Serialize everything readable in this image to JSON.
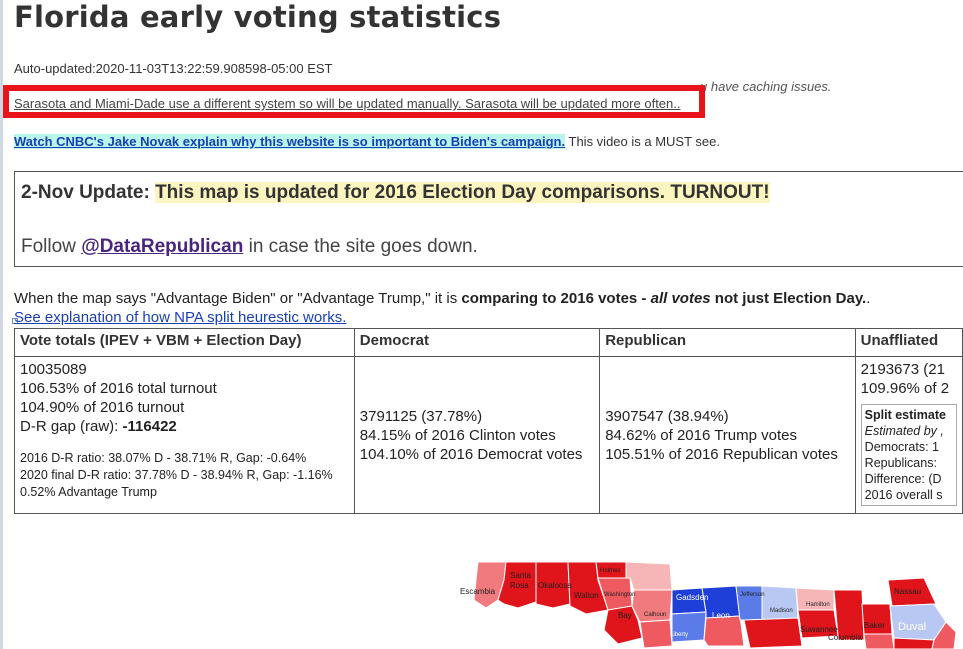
{
  "title": "Florida early voting statistics",
  "auto_updated": "Auto-updated:2020-11-03T13:22:59.908598-05:00 EST",
  "partially_hidden_line": {
    "visible_end": "u have caching issues."
  },
  "manual_note": "Sarasota and Miami-Dade use a different system so will be updated manually. Sarasota will be updated more often..",
  "cnbc": {
    "link": "Watch CNBC's Jake Novak explain why this website is so important to Biden's campaign.",
    "suffix": "This video is a MUST see."
  },
  "update_box": {
    "prefix": "2-Nov Update:",
    "highlight": "This map is updated for 2016 Election Day comparisons. TURNOUT!",
    "follow_pre": "Follow",
    "follow_link": "@DataRepublican",
    "follow_post": "in case the site goes down."
  },
  "advantage": {
    "pre": "When the map says \"Advantage Biden\" or \"Advantage Trump,\" it is ",
    "bold1": "comparing to 2016 votes - ",
    "italic": "all votes",
    "bold2": " not just Election Day.",
    "post": "."
  },
  "npa_link": "See explanation of how NPA split heurestic works.",
  "table": {
    "headers": [
      "Vote totals (IPEV + VBM + Election Day)",
      "Democrat",
      "Republican",
      "Unaffliated"
    ],
    "totals": {
      "total": "10035089",
      "pct_2016_total": "106.53% of 2016 total turnout",
      "pct_2016": "104.90% of 2016 turnout",
      "gap_label": "D-R gap (raw): ",
      "gap_value": "-116422",
      "ratio_2016": "2016 D-R ratio: 38.07% D - 38.71% R, Gap: -0.64%",
      "ratio_2020": "2020 final D-R ratio: 37.78% D - 38.94% R, Gap: -1.16%",
      "advantage": "0.52% Advantage Trump"
    },
    "democrat": [
      "3791125 (37.78%)",
      "84.15% of 2016 Clinton votes",
      "104.10% of 2016 Democrat votes"
    ],
    "republican": [
      "3907547 (38.94%)",
      "84.62% of 2016 Trump votes",
      "105.51% of 2016 Republican votes"
    ],
    "unaffiliated": {
      "line1": "2193673 (21",
      "line2": "109.96% of 2",
      "split_title": "Split estimate",
      "split_estimated": "Estimated by ,",
      "split_dem": "Democrats: 1",
      "split_rep": "Republicans:",
      "split_diff": "Difference: (D",
      "split_overall": "2016 overall s"
    }
  },
  "map": {
    "counties": [
      "Escambia",
      "Santa Rosa",
      "Okaloosa",
      "Walton",
      "Holmes",
      "Washington",
      "Bay",
      "Calhoun",
      "Gadsden",
      "Jefferson",
      "Leon",
      "Liberty",
      "Madison",
      "Hamilton",
      "Suwannee",
      "Columbia",
      "Baker",
      "Nassau",
      "Duval"
    ],
    "colors": {
      "strong_red": "#e0141b",
      "mid_red": "#ee5a5f",
      "light_red": "#f6b6b8",
      "strong_blue": "#1e3fd8",
      "mid_blue": "#5b7ce8",
      "light_blue": "#b9c8f3",
      "water": "#ffffff"
    }
  }
}
